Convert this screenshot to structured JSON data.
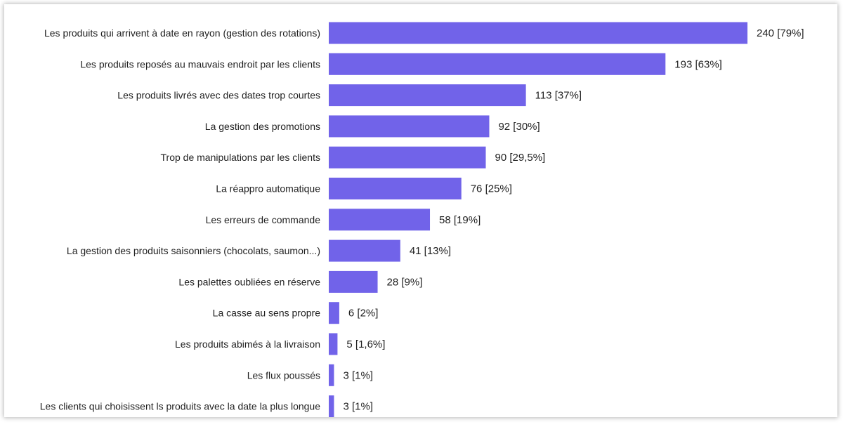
{
  "chart_data": {
    "type": "bar",
    "orientation": "horizontal",
    "bar_color": "#7163E9",
    "title": "",
    "xlabel": "",
    "ylabel": "",
    "grid": false,
    "legend": "none",
    "xlim": [
      0,
      240
    ],
    "categories": [
      "Les produits qui arrivent à date en rayon (gestion des rotations)",
      "Les produits reposés au mauvais endroit par les clients",
      "Les produits livrés avec des dates trop courtes",
      "La gestion des promotions",
      "Trop de manipulations par les clients",
      "La réappro automatique",
      "Les erreurs de commande",
      "La gestion des produits saisonniers (chocolats, saumon...)",
      "Les palettes oubliées en réserve",
      "La casse au sens propre",
      "Les produits abimés à la livraison",
      "Les flux poussés",
      "Les clients qui choisissent ls produits avec la date la plus longue"
    ],
    "values": [
      240,
      193,
      113,
      92,
      90,
      76,
      58,
      41,
      28,
      6,
      5,
      3,
      3
    ],
    "value_labels": [
      "240 [79%]",
      "193 [63%]",
      "113 [37%]",
      "92 [30%]",
      "90 [29,5%]",
      "76 [25%]",
      "58 [19%]",
      "41 [13%]",
      "28 [9%]",
      "6 [2%]",
      "5 [1,6%]",
      "3 [1%]",
      "3 [1%]"
    ]
  }
}
